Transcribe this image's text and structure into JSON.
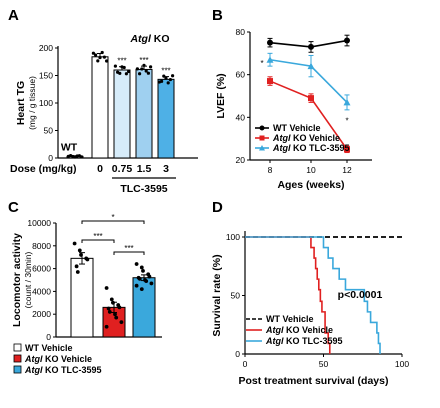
{
  "chart_data": [
    {
      "type": "bar",
      "panel": "A",
      "title": "Atgl KO",
      "ylabel": "Heart TG (mg / g tissue)",
      "ylim": [
        0,
        200
      ],
      "yticks": [
        "0",
        "50",
        "100",
        "150",
        "200"
      ],
      "dose_label": "Dose (mg/kg)",
      "drug_label": "TLC-3595",
      "categories": [
        "WT",
        "0",
        "0.75",
        "1.5",
        "3"
      ],
      "values": [
        3,
        184,
        160,
        161,
        143
      ],
      "errors": [
        1,
        6,
        6,
        6,
        5
      ],
      "significance": [
        "",
        "",
        "***",
        "***",
        "***"
      ],
      "colors": [
        "#ffffff",
        "#ffffff",
        "#d6ecfa",
        "#9fd0f0",
        "#4eb0e6"
      ]
    },
    {
      "type": "line",
      "panel": "B",
      "ylabel": "LVEF (%)",
      "xlabel": "Ages (weeks)",
      "ylim": [
        20,
        80
      ],
      "yticks": [
        "20",
        "40",
        "60",
        "80"
      ],
      "x": [
        "8",
        "10",
        "12"
      ],
      "legend": "bottom-left",
      "series": [
        {
          "name_pre": "WT Vehicle",
          "name_post": "",
          "color": "#000000",
          "values": [
            75,
            73,
            76
          ],
          "errors": [
            2,
            2.5,
            2.5
          ],
          "marker": "circle"
        },
        {
          "name_pre": "Atgl",
          "name_post": " KO Vehicle",
          "color": "#e02020",
          "values": [
            57,
            49,
            25
          ],
          "errors": [
            2,
            2,
            1.5
          ],
          "marker": "square"
        },
        {
          "name_pre": "Atgl",
          "name_post": " KO TLC-3595",
          "color": "#3aa8dc",
          "values": [
            67,
            64,
            47
          ],
          "errors": [
            3,
            5,
            3.5
          ],
          "marker": "triangle"
        }
      ],
      "annotations": [
        "*",
        "*"
      ]
    },
    {
      "type": "bar",
      "panel": "C",
      "ylabel": "Locomotor activity (count / 30min)",
      "ylim": [
        0,
        10000
      ],
      "yticks": [
        "0",
        "2000",
        "4000",
        "6000",
        "8000",
        "10000"
      ],
      "categories": [
        "WT Vehicle",
        "Atgl KO Vehicle",
        "Atgl KO TLC-3595"
      ],
      "values": [
        6900,
        2600,
        5200
      ],
      "errors": [
        500,
        450,
        250
      ],
      "points": [
        [
          8200,
          7600,
          7200,
          6900,
          6800,
          6200,
          5700
        ],
        [
          4300,
          3300,
          3000,
          2800,
          2600,
          2500,
          2200,
          2000,
          1700,
          1300,
          900
        ],
        [
          6400,
          6100,
          5800,
          5500,
          5300,
          5200,
          5100,
          5000,
          4900,
          4700,
          4500,
          4200
        ]
      ],
      "colors": [
        "#ffffff",
        "#e02020",
        "#3aa8dc"
      ],
      "significance": [
        "*",
        "***",
        "***"
      ],
      "legend": [
        {
          "pre": "WT Vehicle",
          "post": ""
        },
        {
          "pre": "Atgl",
          "post": " KO Vehicle"
        },
        {
          "pre": "Atgl",
          "post": " KO TLC-3595"
        }
      ]
    },
    {
      "type": "line",
      "panel": "D",
      "ylabel": "Survival rate (%)",
      "xlabel": "Post treatment survival (days)",
      "xlim": [
        0,
        100
      ],
      "ylim": [
        0,
        100
      ],
      "xticks": [
        "0",
        "50",
        "100"
      ],
      "yticks": [
        "0",
        "50",
        "100"
      ],
      "pvalue": "p<0.0001",
      "legend": "bottom-left",
      "series": [
        {
          "name_pre": "WT Vehicle",
          "name_post": "",
          "color": "#000000",
          "dashed": true,
          "steps": [
            [
              0,
              100
            ],
            [
              100,
              100
            ]
          ]
        },
        {
          "name_pre": "Atgl",
          "name_post": " KO Vehicle",
          "color": "#e02020",
          "dashed": false,
          "steps": [
            [
              0,
              100
            ],
            [
              42,
              100
            ],
            [
              42,
              91
            ],
            [
              44,
              91
            ],
            [
              44,
              82
            ],
            [
              45,
              82
            ],
            [
              45,
              73
            ],
            [
              46,
              73
            ],
            [
              46,
              64
            ],
            [
              47,
              64
            ],
            [
              47,
              55
            ],
            [
              48,
              55
            ],
            [
              48,
              45
            ],
            [
              49,
              45
            ],
            [
              49,
              36
            ],
            [
              51,
              36
            ],
            [
              51,
              18
            ],
            [
              53,
              18
            ],
            [
              53,
              9
            ],
            [
              54,
              9
            ],
            [
              54,
              0
            ]
          ]
        },
        {
          "name_pre": "Atgl",
          "name_post": " KO TLC-3595",
          "color": "#3aa8dc",
          "dashed": false,
          "steps": [
            [
              0,
              100
            ],
            [
              50,
              100
            ],
            [
              50,
              91
            ],
            [
              53,
              91
            ],
            [
              53,
              82
            ],
            [
              56,
              82
            ],
            [
              56,
              73
            ],
            [
              60,
              73
            ],
            [
              60,
              64
            ],
            [
              64,
              64
            ],
            [
              64,
              55
            ],
            [
              76,
              55
            ],
            [
              76,
              45
            ],
            [
              78,
              45
            ],
            [
              78,
              36
            ],
            [
              80,
              36
            ],
            [
              80,
              27
            ],
            [
              84,
              27
            ],
            [
              84,
              18
            ],
            [
              85,
              18
            ],
            [
              85,
              9
            ],
            [
              86,
              9
            ],
            [
              86,
              0
            ]
          ]
        }
      ]
    }
  ]
}
